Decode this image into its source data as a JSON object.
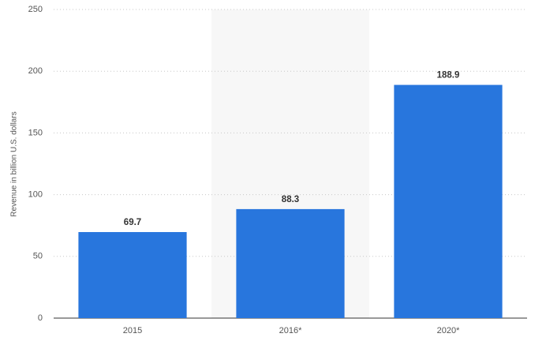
{
  "chart_data": {
    "type": "bar",
    "y_label": "Revenue in billion U.S. dollars",
    "categories": [
      "2015",
      "2016*",
      "2020*"
    ],
    "values": [
      69.7,
      88.3,
      188.9
    ],
    "color": "#2876dd",
    "ylim": [
      0,
      250
    ],
    "yticks": [
      0,
      50,
      100,
      150,
      200,
      250
    ],
    "grid": true
  }
}
